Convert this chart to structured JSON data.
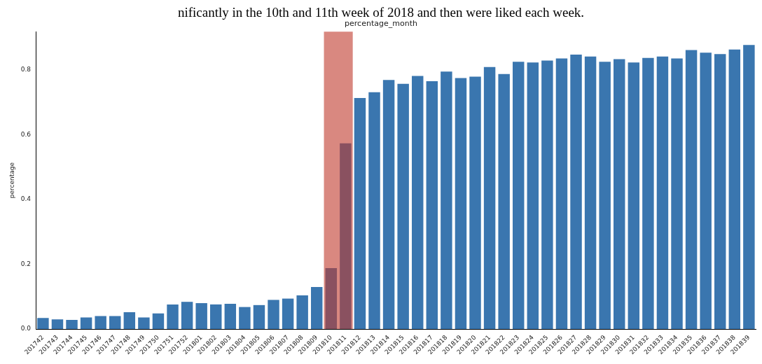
{
  "chart_data": {
    "type": "bar",
    "title": "percentage_month",
    "ylabel": "percentage",
    "annotations": [
      "nificantly in the 10th and 11th week of 2018 and then were liked each week."
    ],
    "categories": [
      "201742",
      "201743",
      "201744",
      "201745",
      "201746",
      "201747",
      "201748",
      "201749",
      "201750",
      "201751",
      "201752",
      "201801",
      "201802",
      "201803",
      "201804",
      "201805",
      "201806",
      "201807",
      "201808",
      "201809",
      "201810",
      "201811",
      "201812",
      "201813",
      "201814",
      "201815",
      "201816",
      "201817",
      "201818",
      "201819",
      "201820",
      "201821",
      "201822",
      "201823",
      "201824",
      "201825",
      "201826",
      "201827",
      "201828",
      "201829",
      "201830",
      "201831",
      "201832",
      "201833",
      "201834",
      "201835",
      "201836",
      "201837",
      "201838",
      "201839"
    ],
    "values": [
      0.034,
      0.03,
      0.028,
      0.036,
      0.04,
      0.04,
      0.052,
      0.036,
      0.048,
      0.076,
      0.084,
      0.08,
      0.076,
      0.078,
      0.068,
      0.074,
      0.09,
      0.094,
      0.104,
      0.13,
      0.188,
      0.573,
      0.713,
      0.731,
      0.769,
      0.757,
      0.781,
      0.765,
      0.795,
      0.775,
      0.779,
      0.809,
      0.787,
      0.825,
      0.823,
      0.829,
      0.835,
      0.847,
      0.841,
      0.825,
      0.833,
      0.823,
      0.837,
      0.841,
      0.835,
      0.861,
      0.853,
      0.849,
      0.863,
      0.877
    ],
    "color": "#3a76af",
    "ylim": [
      0,
      0.918
    ],
    "yticks": [
      {
        "value": 0,
        "label": "0.0"
      },
      {
        "value": 0.2,
        "label": "0.2"
      },
      {
        "value": 0.4,
        "label": "0.4"
      },
      {
        "value": 0.6,
        "label": "0.6"
      },
      {
        "value": 0.8,
        "label": "0.8"
      }
    ],
    "bands": [
      {
        "axis": "x",
        "from": "201810",
        "to": "201811",
        "color": "#c0392b"
      }
    ],
    "grid": false,
    "legend": false
  }
}
